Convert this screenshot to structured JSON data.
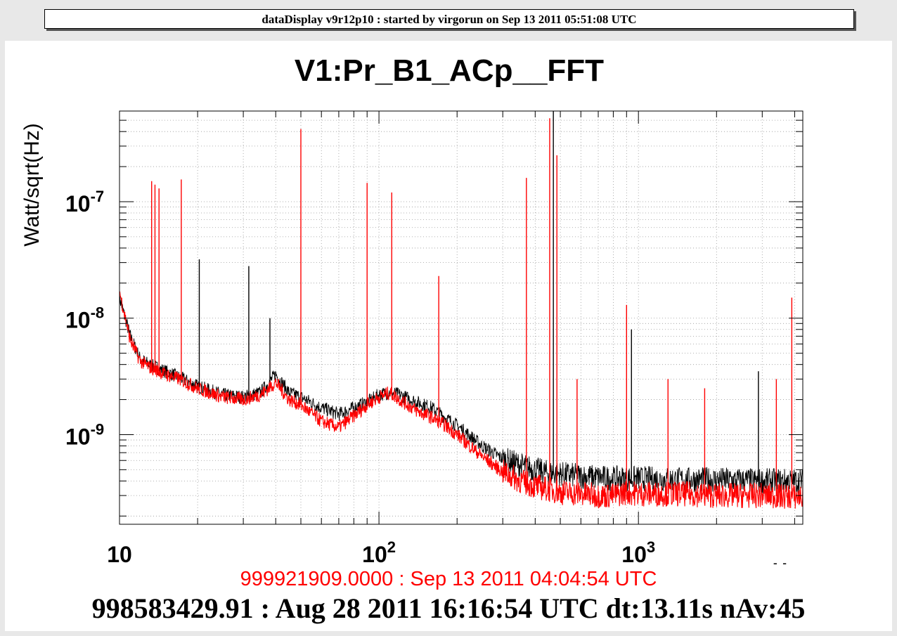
{
  "window": {
    "banner": "dataDisplay v9r12p10 : started by virgorun on Sep 13 2011 05:51:08 UTC"
  },
  "chart_data": {
    "type": "line",
    "title": "V1:Pr_B1_ACp__FFT",
    "xlabel": "Hz",
    "ylabel": "Watt/sqrt(Hz)",
    "xscale": "log",
    "yscale": "log",
    "xlim": [
      10,
      4300
    ],
    "ylim": [
      1.7e-10,
      6e-07
    ],
    "grid": true,
    "x_ticks": [
      {
        "value": 10,
        "base": "10",
        "exp": ""
      },
      {
        "value": 100,
        "base": "10",
        "exp": "2"
      },
      {
        "value": 1000,
        "base": "10",
        "exp": "3"
      }
    ],
    "y_ticks": [
      {
        "value": 1e-09,
        "base": "10",
        "exp": "-9"
      },
      {
        "value": 1e-08,
        "base": "10",
        "exp": "-8"
      },
      {
        "value": 1e-07,
        "base": "10",
        "exp": "-7"
      }
    ],
    "colors": {
      "current": "#ff0000",
      "reference": "#000000"
    },
    "series": [
      {
        "color": "#000000",
        "x": [
          10,
          11,
          12,
          13,
          15,
          17,
          20,
          25,
          30,
          35,
          40,
          45,
          50,
          60,
          70,
          80,
          90,
          100,
          110,
          120,
          140,
          160,
          180,
          200,
          250,
          300,
          350,
          400,
          450,
          500,
          600,
          700,
          800,
          900,
          1000,
          1500,
          2000,
          3000,
          4300
        ],
        "y": [
          1.5e-08,
          7e-09,
          4.5e-09,
          4e-09,
          3.5e-09,
          3.1e-09,
          2.6e-09,
          2.2e-09,
          2.1e-09,
          2.3e-09,
          3.3e-09,
          2.3e-09,
          2.1e-09,
          1.7e-09,
          1.5e-09,
          1.7e-09,
          1.9e-09,
          2.2e-09,
          2.3e-09,
          2.2e-09,
          1.9e-09,
          1.7e-09,
          1.4e-09,
          1.2e-09,
          8e-10,
          6.2e-10,
          5.5e-10,
          5e-10,
          4.7e-10,
          4.6e-10,
          4.4e-10,
          4.3e-10,
          4.2e-10,
          4.2e-10,
          4.2e-10,
          4.1e-10,
          4.1e-10,
          4e-10,
          4e-10
        ]
      },
      {
        "color": "#ff0000",
        "x": [
          10,
          11,
          12,
          13,
          15,
          17,
          20,
          25,
          30,
          35,
          40,
          45,
          50,
          60,
          70,
          80,
          90,
          100,
          110,
          120,
          140,
          160,
          180,
          200,
          250,
          300,
          350,
          400,
          450,
          500,
          600,
          700,
          800,
          900,
          1000,
          1500,
          2000,
          3000,
          4300
        ],
        "y": [
          1.7e-08,
          6.5e-09,
          4.3e-09,
          3.8e-09,
          3.3e-09,
          3e-09,
          2.5e-09,
          2.1e-09,
          2e-09,
          2.2e-09,
          2.8e-09,
          2e-09,
          1.8e-09,
          1.3e-09,
          1.15e-09,
          1.45e-09,
          1.8e-09,
          2.1e-09,
          2.3e-09,
          2e-09,
          1.6e-09,
          1.4e-09,
          1.2e-09,
          1e-09,
          6.5e-10,
          4.8e-10,
          4e-10,
          3.6e-10,
          3.4e-10,
          3.2e-10,
          3.1e-10,
          3e-10,
          3e-10,
          3.2e-10,
          3.1e-10,
          3.1e-10,
          3e-10,
          3e-10,
          2.9e-10
        ]
      }
    ],
    "peaks": [
      {
        "color": "#ff0000",
        "x": 13.3,
        "y": 1.5e-07
      },
      {
        "color": "#ff0000",
        "x": 13.7,
        "y": 1.4e-07
      },
      {
        "color": "#ff0000",
        "x": 14.2,
        "y": 1.3e-07
      },
      {
        "color": "#ff0000",
        "x": 17.3,
        "y": 1.55e-07
      },
      {
        "color": "#000000",
        "x": 20.3,
        "y": 3.2e-08
      },
      {
        "color": "#000000",
        "x": 31.5,
        "y": 2.8e-08
      },
      {
        "color": "#000000",
        "x": 38,
        "y": 1e-08
      },
      {
        "color": "#ff0000",
        "x": 50,
        "y": 4.2e-07
      },
      {
        "color": "#ff0000",
        "x": 90,
        "y": 1.45e-07
      },
      {
        "color": "#ff0000",
        "x": 112,
        "y": 1.2e-07
      },
      {
        "color": "#ff0000",
        "x": 170,
        "y": 2.3e-08
      },
      {
        "color": "#ff0000",
        "x": 370,
        "y": 1.6e-07
      },
      {
        "color": "#ff0000",
        "x": 455,
        "y": 5.2e-07
      },
      {
        "color": "#000000",
        "x": 470,
        "y": 6e-07
      },
      {
        "color": "#ff0000",
        "x": 485,
        "y": 2.5e-07
      },
      {
        "color": "#ff0000",
        "x": 580,
        "y": 3e-09
      },
      {
        "color": "#ff0000",
        "x": 900,
        "y": 1.3e-08
      },
      {
        "color": "#000000",
        "x": 940,
        "y": 8e-09
      },
      {
        "color": "#ff0000",
        "x": 1300,
        "y": 3e-09
      },
      {
        "color": "#ff0000",
        "x": 1800,
        "y": 2.5e-09
      },
      {
        "color": "#000000",
        "x": 2900,
        "y": 3.5e-09
      },
      {
        "color": "#ff0000",
        "x": 3400,
        "y": 3e-09
      },
      {
        "color": "#ff0000",
        "x": 3900,
        "y": 1.5e-08
      }
    ]
  },
  "footer": {
    "current_stamp": "999921909.0000 : Sep 13 2011 04:04:54 UTC",
    "reference_stamp": "998583429.91 : Aug 28 2011 16:16:54 UTC dt:13.11s nAv:45"
  }
}
